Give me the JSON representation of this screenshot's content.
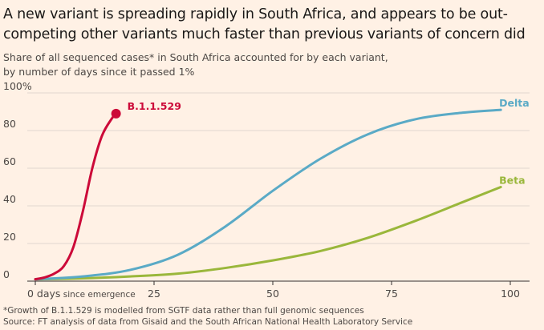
{
  "title": "A new variant is spreading rapidly in South Africa, and appears to be out-competing other variants much faster than previous variants of concern did",
  "subtitle_line1": "Share of all sequenced cases* in South Africa accounted for by each variant,",
  "subtitle_line2": "by number of days since it passed 1%",
  "footnote_line1": "*Growth of B.1.1.529 is modelled from SGTF data rather than full genomic sequences",
  "footnote_line2": "Source: FT analysis of data from Gisaid and the South African National Health Laboratory Service",
  "colors": {
    "background": "#fff1e5",
    "grid": "#e2d8cf",
    "axis": "#33302e",
    "B.1.1.529": "#cc0a39",
    "Delta": "#5aaac6",
    "Beta": "#9ab73b"
  },
  "chart_data": {
    "type": "line",
    "xlim": [
      0,
      100
    ],
    "ylim": [
      0,
      100
    ],
    "x_ticks": [
      0,
      25,
      50,
      75,
      100
    ],
    "x_tick_labels": [
      "0 days",
      "25",
      "50",
      "75",
      "100"
    ],
    "x_first_tick_suffix": "since emergence",
    "y_ticks": [
      0,
      20,
      40,
      60,
      80,
      100
    ],
    "y_tick_labels": [
      "0",
      "20",
      "40",
      "60",
      "80",
      "100%"
    ],
    "grid": true,
    "series": [
      {
        "name": "B.1.1.529",
        "x": [
          0,
          2,
          4,
          6,
          8,
          10,
          12,
          14,
          16,
          17
        ],
        "y": [
          1,
          2,
          4,
          8,
          18,
          37,
          60,
          77,
          86,
          89
        ],
        "end_marker": true
      },
      {
        "name": "Delta",
        "x": [
          0,
          10,
          20,
          30,
          40,
          50,
          60,
          70,
          80,
          90,
          98
        ],
        "y": [
          1,
          2.5,
          6,
          14,
          29,
          48,
          65,
          78,
          86,
          89.5,
          91
        ]
      },
      {
        "name": "Beta",
        "x": [
          0,
          10,
          20,
          30,
          40,
          50,
          60,
          70,
          80,
          90,
          98
        ],
        "y": [
          1,
          1.5,
          2.5,
          4,
          7,
          11,
          16,
          23,
          32,
          42,
          50
        ]
      }
    ]
  }
}
